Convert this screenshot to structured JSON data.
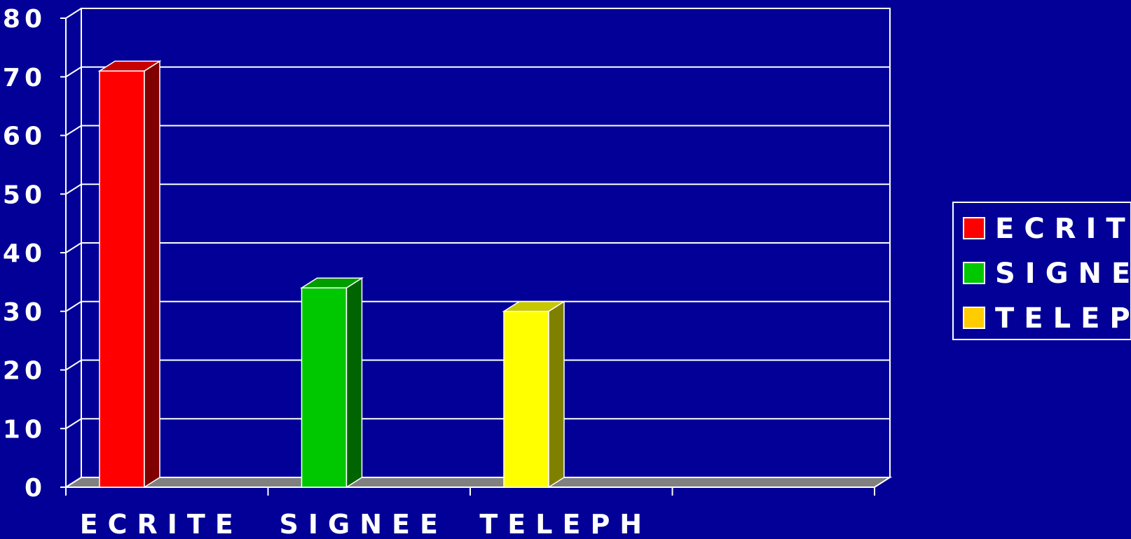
{
  "chart_data": {
    "type": "bar",
    "categories": [
      "ECRITE",
      "SIGNEE",
      "TELEPH"
    ],
    "values": [
      71,
      34,
      30
    ],
    "colors": [
      "#ff0000",
      "#00c800",
      "#ffff00"
    ],
    "legend": {
      "entries": [
        "ECRITE",
        "SIGNEE",
        "TELEPH"
      ],
      "colors": [
        "#ff0000",
        "#00c800",
        "#ffcc00"
      ],
      "placement": "right"
    },
    "ylim": [
      0,
      80
    ],
    "yticks": [
      "0",
      "10",
      "20",
      "30",
      "40",
      "50",
      "60",
      "70",
      "80"
    ],
    "grid": true,
    "three_d": true,
    "title": "",
    "xlabel": "",
    "ylabel": "",
    "background_color": "#020096",
    "floor_color": "#808080"
  }
}
